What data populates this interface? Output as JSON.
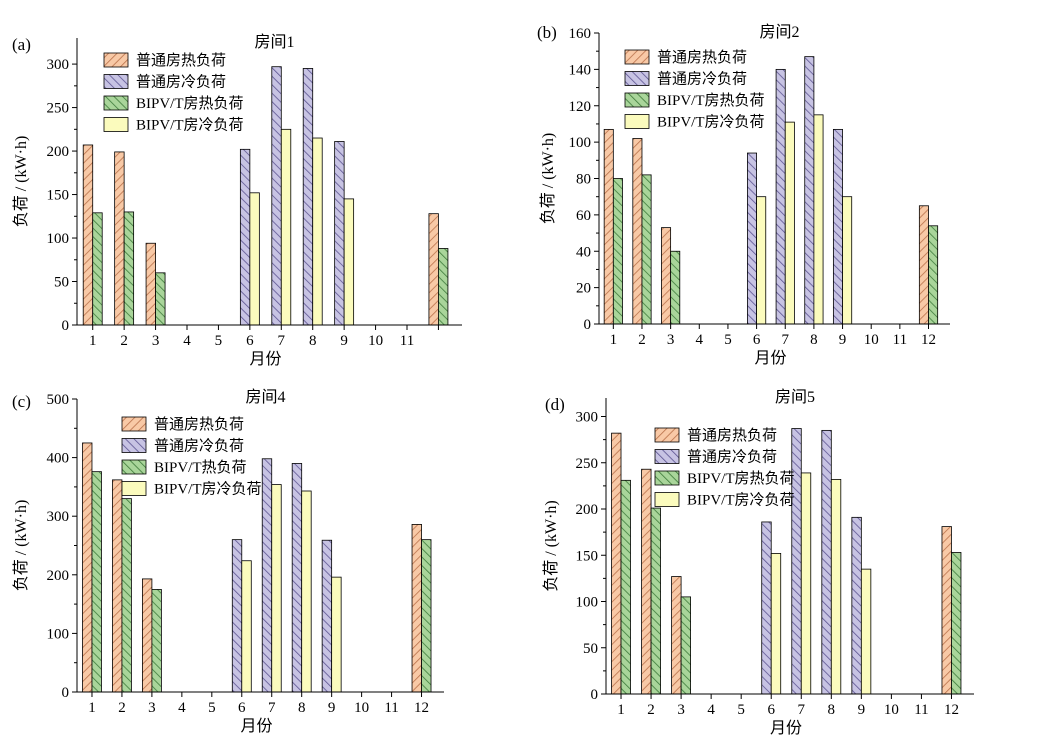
{
  "series_styles": [
    {
      "key": "heat_normal",
      "pattern": "hatch-heat",
      "fill": "#f8c9a6",
      "line": "#b9714a"
    },
    {
      "key": "cool_normal",
      "pattern": "hatch-cool",
      "fill": "#c7c3e3",
      "line": "#5d5592"
    },
    {
      "key": "heat_bipv",
      "pattern": "hatch-bipv",
      "fill": "#a9d59a",
      "line": "#3d7a3a"
    },
    {
      "key": "cool_bipv",
      "pattern": "solid",
      "fill": "#fbfbbd",
      "line": "#b7b66a"
    }
  ],
  "chart_data": [
    {
      "type": "bar",
      "tag": "(a)",
      "title": "房间1",
      "xlabel": "月份",
      "ylabel": "负荷 / (kW·h)",
      "categories": [
        "1",
        "2",
        "3",
        "4",
        "5",
        "6",
        "7",
        "8",
        "9",
        "10",
        "11",
        ""
      ],
      "ylim": [
        0,
        330
      ],
      "yticks": [
        0,
        50,
        100,
        150,
        200,
        250,
        300
      ],
      "legend_position": "top-left",
      "series": [
        {
          "name": "普通房热负荷",
          "values": [
            207,
            199,
            94,
            0,
            0,
            0,
            0,
            0,
            0,
            0,
            0,
            128
          ]
        },
        {
          "name": "普通房冷负荷",
          "values": [
            0,
            0,
            0,
            0,
            0,
            202,
            297,
            295,
            211,
            0,
            0,
            0
          ]
        },
        {
          "name": "BIPV/T房热负荷",
          "values": [
            129,
            130,
            60,
            0,
            0,
            0,
            0,
            0,
            0,
            0,
            0,
            88
          ]
        },
        {
          "name": "BIPV/T房冷负荷",
          "values": [
            0,
            0,
            0,
            0,
            0,
            152,
            225,
            215,
            145,
            0,
            0,
            0
          ]
        }
      ]
    },
    {
      "type": "bar",
      "tag": "(b)",
      "title": "房间2",
      "xlabel": "月份",
      "ylabel": "负荷 / (kW·h)",
      "categories": [
        "1",
        "2",
        "3",
        "4",
        "5",
        "6",
        "7",
        "8",
        "9",
        "10",
        "11",
        "12"
      ],
      "ylim": [
        0,
        160
      ],
      "yticks": [
        0,
        20,
        40,
        60,
        80,
        100,
        120,
        140,
        160
      ],
      "legend_position": "top-left",
      "series": [
        {
          "name": "普通房热负荷",
          "values": [
            107,
            102,
            53,
            0,
            0,
            0,
            0,
            0,
            0,
            0,
            0,
            65
          ]
        },
        {
          "name": "普通房冷负荷",
          "values": [
            0,
            0,
            0,
            0,
            0,
            94,
            140,
            147,
            107,
            0,
            0,
            0
          ]
        },
        {
          "name": "BIPV/T房热负荷",
          "values": [
            80,
            82,
            40,
            0,
            0,
            0,
            0,
            0,
            0,
            0,
            0,
            54
          ]
        },
        {
          "name": "BIPV/T房冷负荷",
          "values": [
            0,
            0,
            0,
            0,
            0,
            70,
            111,
            115,
            70,
            0,
            0,
            0
          ]
        }
      ]
    },
    {
      "type": "bar",
      "tag": "(c)",
      "title": "房间4",
      "xlabel": "月份",
      "ylabel": "负荷 / (kW·h)",
      "categories": [
        "1",
        "2",
        "3",
        "4",
        "5",
        "6",
        "7",
        "8",
        "9",
        "10",
        "11",
        "12"
      ],
      "ylim": [
        0,
        500
      ],
      "yticks": [
        0,
        100,
        200,
        300,
        400,
        500
      ],
      "legend_position": "top-center",
      "series": [
        {
          "name": "普通房热负荷",
          "values": [
            425,
            362,
            193,
            0,
            0,
            0,
            0,
            0,
            0,
            0,
            0,
            286
          ]
        },
        {
          "name": "普通房冷负荷",
          "values": [
            0,
            0,
            0,
            0,
            0,
            260,
            398,
            390,
            259,
            0,
            0,
            0
          ]
        },
        {
          "name": "BIPV/T热负荷",
          "values": [
            376,
            330,
            175,
            0,
            0,
            0,
            0,
            0,
            0,
            0,
            0,
            260
          ]
        },
        {
          "name": "BIPV/T房冷负荷",
          "values": [
            0,
            0,
            0,
            0,
            0,
            224,
            354,
            343,
            196,
            0,
            0,
            0
          ]
        }
      ]
    },
    {
      "type": "bar",
      "tag": "(d)",
      "title": "房间5",
      "xlabel": "月份",
      "ylabel": "负荷 / (kW·h)",
      "categories": [
        "1",
        "2",
        "3",
        "4",
        "5",
        "6",
        "7",
        "8",
        "9",
        "10",
        "11",
        "12"
      ],
      "ylim": [
        0,
        320
      ],
      "yticks": [
        0,
        50,
        100,
        150,
        200,
        250,
        300
      ],
      "legend_position": "top-center",
      "series": [
        {
          "name": "普通房热负荷",
          "values": [
            282,
            243,
            127,
            0,
            0,
            0,
            0,
            0,
            0,
            0,
            0,
            181
          ]
        },
        {
          "name": "普通房冷负荷",
          "values": [
            0,
            0,
            0,
            0,
            0,
            186,
            287,
            285,
            191,
            0,
            0,
            0
          ]
        },
        {
          "name": "BIPV/T房热负荷",
          "values": [
            231,
            201,
            105,
            0,
            0,
            0,
            0,
            0,
            0,
            0,
            0,
            153
          ]
        },
        {
          "name": "BIPV/T房冷负荷",
          "values": [
            0,
            0,
            0,
            0,
            0,
            152,
            239,
            232,
            135,
            0,
            0,
            0
          ]
        }
      ]
    }
  ]
}
